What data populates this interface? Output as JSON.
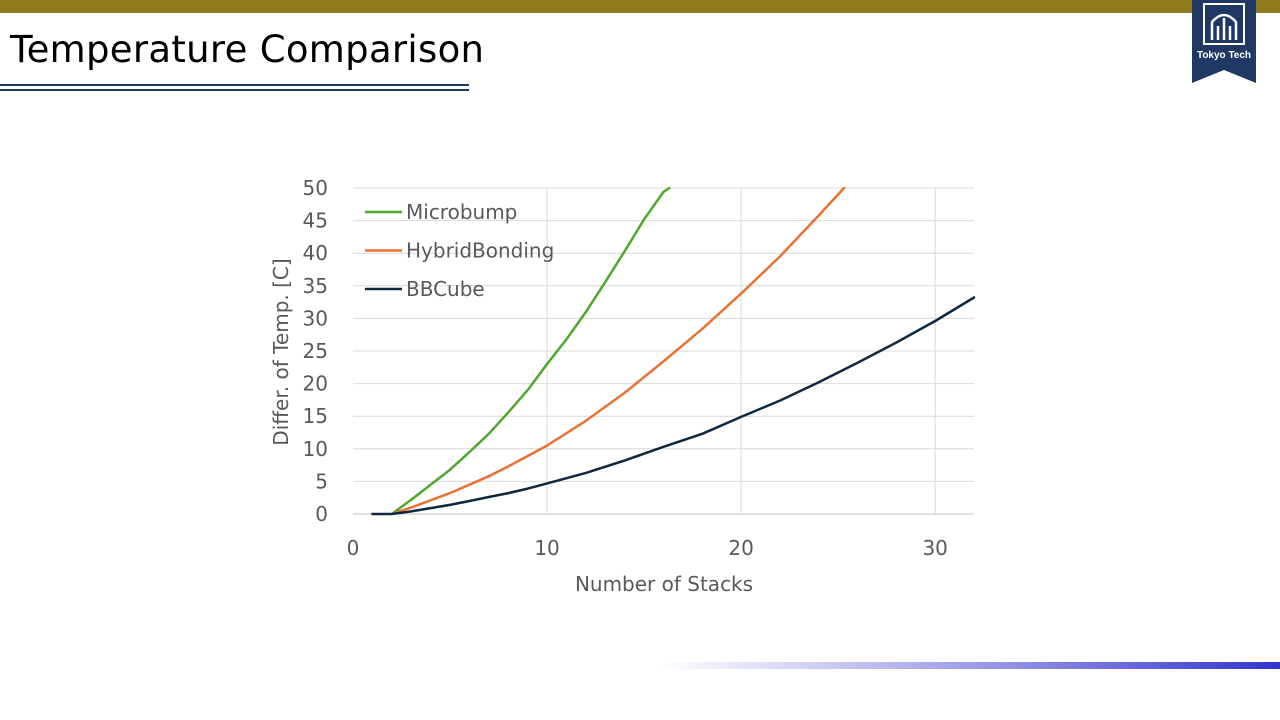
{
  "slide": {
    "title": "Temperature Comparison",
    "logo_text": "Tokyo Tech",
    "colors": {
      "top_bar": "#8f7a1f",
      "rule": "#1f3864",
      "logo_bg": "#1f3864",
      "bottom_bar": "#3333cc"
    }
  },
  "chart_data": {
    "type": "line",
    "title": "",
    "xlabel": "Number of Stacks",
    "ylabel": "Differ. of Temp. [C]",
    "xlim": [
      0,
      32
    ],
    "ylim": [
      0,
      50
    ],
    "xticks": [
      0,
      10,
      20,
      30
    ],
    "yticks": [
      0,
      5,
      10,
      15,
      20,
      25,
      30,
      35,
      40,
      45,
      50
    ],
    "grid": true,
    "legend": "top-left",
    "series": [
      {
        "name": "Microbump",
        "color": "#4ea72e",
        "x": [
          2,
          3,
          4,
          5,
          6,
          7,
          8,
          9,
          10,
          11,
          12,
          13,
          14,
          15,
          16,
          16.3
        ],
        "y": [
          0,
          2.2,
          4.5,
          6.8,
          9.5,
          12.3,
          15.6,
          19.0,
          23.0,
          26.8,
          31.0,
          35.6,
          40.3,
          45.2,
          49.4,
          50
        ]
      },
      {
        "name": "HybridBonding",
        "color": "#e97132",
        "x": [
          2,
          3,
          4,
          5,
          6,
          7,
          8,
          9,
          10,
          12,
          14,
          16,
          18,
          20,
          22,
          24,
          25.3
        ],
        "y": [
          0,
          1.0,
          2.1,
          3.2,
          4.5,
          5.8,
          7.3,
          8.9,
          10.5,
          14.3,
          18.6,
          23.4,
          28.4,
          33.8,
          39.5,
          45.8,
          50
        ]
      },
      {
        "name": "BBCube",
        "color": "#0e2841",
        "x": [
          1,
          2,
          3,
          4,
          5,
          6,
          7,
          8,
          9,
          10,
          12,
          14,
          16,
          18,
          20,
          22,
          24,
          26,
          28,
          30,
          32
        ],
        "y": [
          0,
          0,
          0.4,
          0.9,
          1.4,
          2.0,
          2.6,
          3.2,
          3.9,
          4.7,
          6.3,
          8.2,
          10.3,
          12.3,
          14.9,
          17.4,
          20.2,
          23.2,
          26.3,
          29.6,
          33.2
        ]
      }
    ]
  }
}
